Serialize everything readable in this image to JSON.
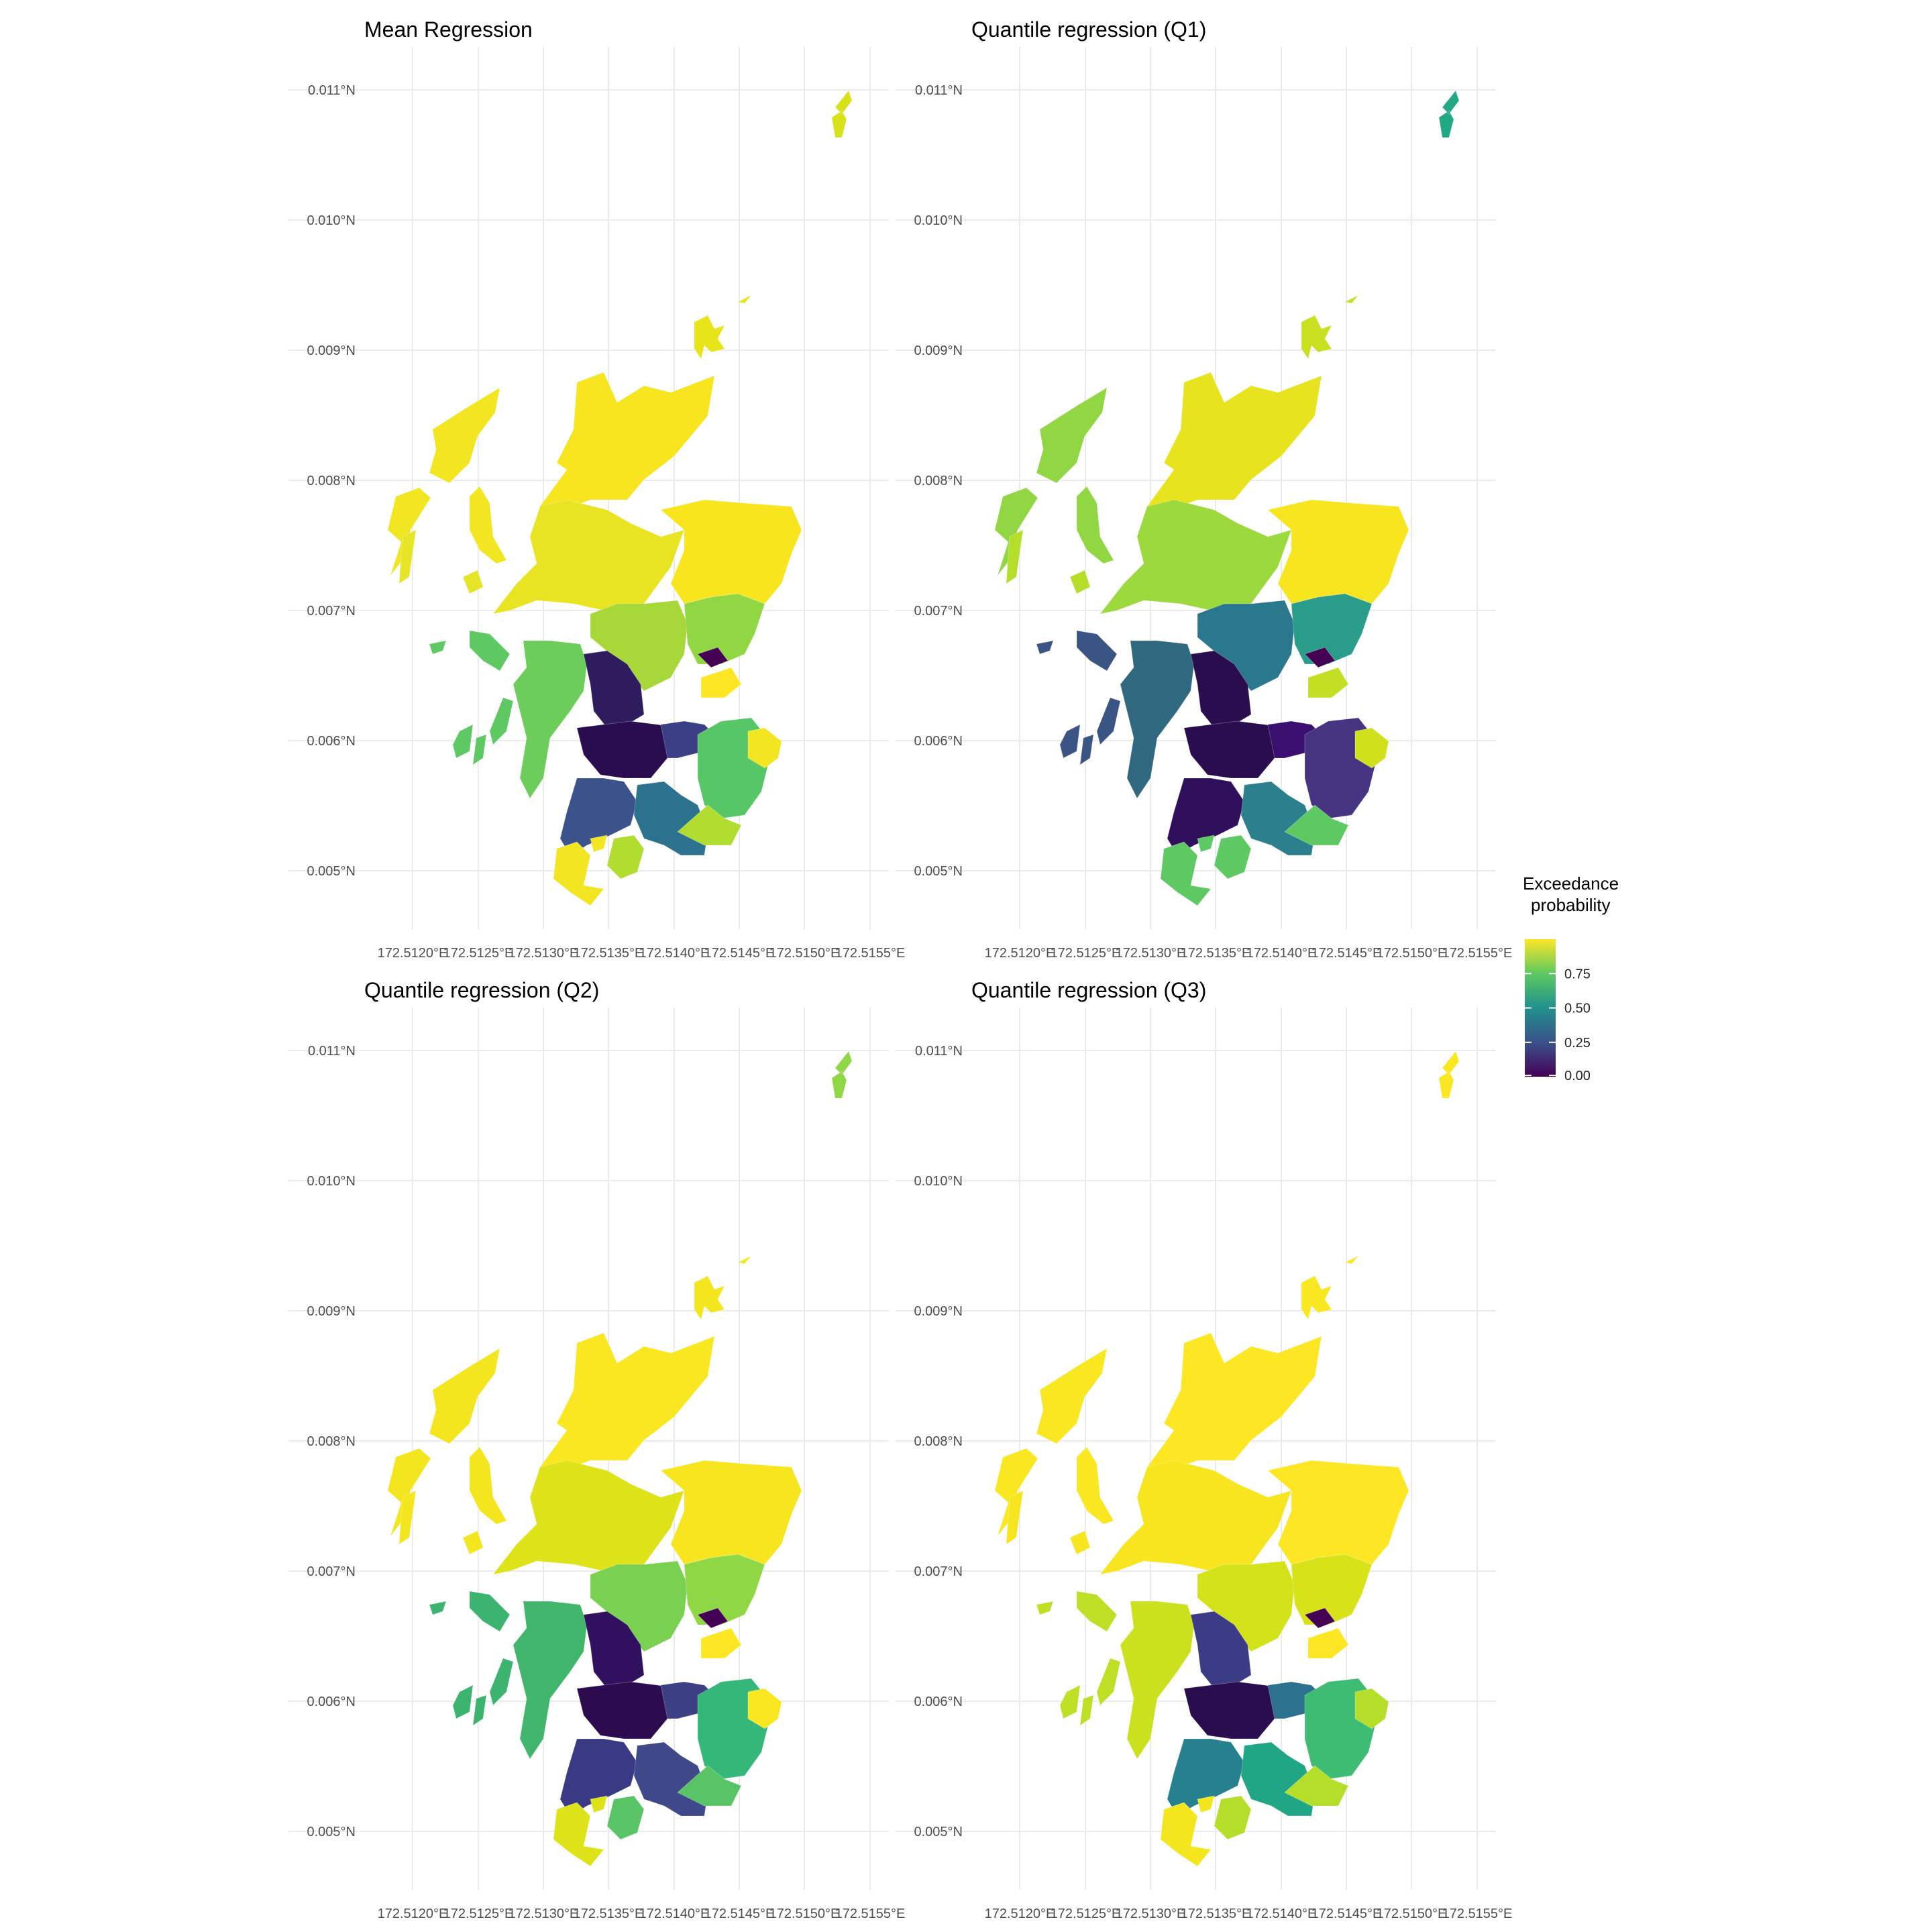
{
  "panels": [
    {
      "title": "Mean Regression",
      "colors": {
        "north": "#f7e51f",
        "northwest_islands": "#f2e522",
        "west_islands": "#e6e426",
        "central_north": "#e9e422",
        "grampian": "#f8e51e",
        "tayside": "#a8d73a",
        "fife_east": "#90d743",
        "argyll": "#6ccd5a",
        "west_coast": "#5ec962",
        "central_belt": "#2f1c5e",
        "glasgow": "#2a0d4f",
        "lothian": "#3b3f85",
        "borders": "#56c667",
        "east_borders": "#f2e522",
        "ayrshire": "#3b528b",
        "dumfries": "#2c728e",
        "south": "#b0dd2f",
        "southwest": "#f2e522",
        "dundee": "#440154",
        "east_tip": "#fde725",
        "north_isles": "#e7e419",
        "shetland": "#d8e219"
      }
    },
    {
      "title": "Quantile regression (Q1)",
      "colors": {
        "north": "#e8e31f",
        "northwest_islands": "#90d743",
        "west_islands": "#b5de2b",
        "central_north": "#9bd93c",
        "grampian": "#f7e51f",
        "tayside": "#2a788e",
        "fife_east": "#2a9d8a",
        "argyll": "#30687f",
        "west_coast": "#3a5484",
        "central_belt": "#2a0d4f",
        "glasgow": "#2a0d4f",
        "lothian": "#3b0f6f",
        "borders": "#463480",
        "east_borders": "#d0e11c",
        "ayrshire": "#2f0f5b",
        "dumfries": "#2c808e",
        "south": "#5ec962",
        "southwest": "#5ec962",
        "dundee": "#440154",
        "east_tip": "#c2df23",
        "north_isles": "#c8e020",
        "shetland": "#22a884"
      }
    },
    {
      "title": "Quantile regression (Q2)",
      "colors": {
        "north": "#f9e721",
        "northwest_islands": "#f4e61e",
        "west_islands": "#f4e61e",
        "central_north": "#dde318",
        "grampian": "#f7e51f",
        "tayside": "#7ad151",
        "fife_east": "#8fd744",
        "argyll": "#41b56c",
        "west_coast": "#3cb470",
        "central_belt": "#31105f",
        "glasgow": "#2c0b4f",
        "lothian": "#3d3f85",
        "borders": "#35b779",
        "east_borders": "#f9e721",
        "ayrshire": "#3a3a84",
        "dumfries": "#3f4989",
        "south": "#59c466",
        "southwest": "#dde318",
        "dundee": "#440154",
        "east_tip": "#fde725",
        "north_isles": "#f4e61e",
        "shetland": "#8fd744"
      }
    },
    {
      "title": "Quantile regression (Q3)",
      "colors": {
        "north": "#fde725",
        "northwest_islands": "#f9e721",
        "west_islands": "#f7e51f",
        "central_north": "#f7e51f",
        "grampian": "#fde725",
        "tayside": "#d4e21a",
        "fife_east": "#d8e219",
        "argyll": "#cbe11e",
        "west_coast": "#bddf26",
        "central_belt": "#3b3b86",
        "glasgow": "#2a0d4f",
        "lothian": "#2c728e",
        "borders": "#3fbc73",
        "east_borders": "#b5de2b",
        "ayrshire": "#27808e",
        "dumfries": "#21a685",
        "south": "#b5de2b",
        "southwest": "#f4e61e",
        "dundee": "#440154",
        "east_tip": "#fde725",
        "north_isles": "#f9e721",
        "shetland": "#f9e721"
      }
    }
  ],
  "y_tick_labels": [
    "0.011°N",
    "0.010°N",
    "0.009°N",
    "0.008°N",
    "0.007°N",
    "0.006°N",
    "0.005°N"
  ],
  "x_tick_labels": [
    "172.5120°E",
    "172.5125°E",
    "172.5130°E",
    "172.5135°E",
    "172.5140°E",
    "172.5145°E",
    "172.5150°E",
    "172.5155°E"
  ],
  "legend": {
    "title_line1": "Exceedance",
    "title_line2": "probability",
    "ticks": [
      "0.75",
      "0.50",
      "0.25",
      "0.00"
    ],
    "tick_values": [
      0.75,
      0.5,
      0.25,
      0.0
    ],
    "range": [
      0,
      1
    ],
    "palette": [
      "#440154",
      "#3b528b",
      "#21918c",
      "#5ec962",
      "#fde725"
    ]
  }
}
